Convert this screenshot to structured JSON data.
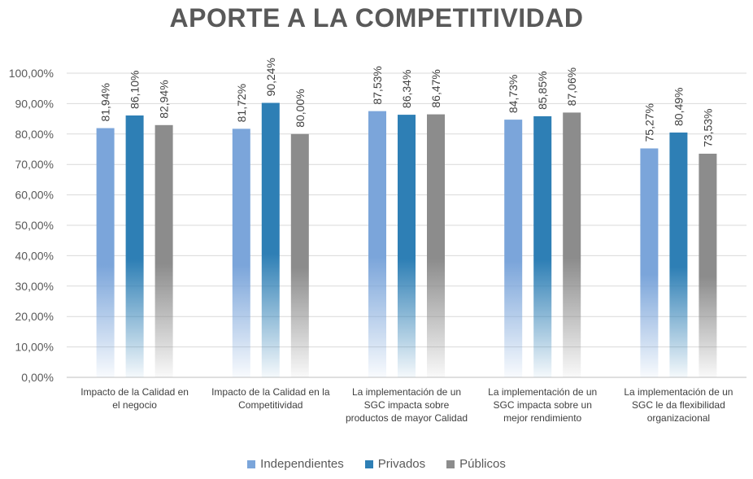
{
  "chart_data": {
    "type": "bar",
    "title": "APORTE A LA COMPETITIVIDAD",
    "xlabel": "",
    "ylabel": "",
    "ylim": [
      0,
      100
    ],
    "yticks": [
      "0,00%",
      "10,00%",
      "20,00%",
      "30,00%",
      "40,00%",
      "50,00%",
      "60,00%",
      "70,00%",
      "80,00%",
      "90,00%",
      "100,00%"
    ],
    "grid": true,
    "legend_position": "bottom",
    "categories": [
      [
        "Impacto de la Calidad en",
        "el negocio"
      ],
      [
        "Impacto de la Calidad en la",
        "Competitividad"
      ],
      [
        "La implementación de un",
        "SGC impacta sobre",
        "productos de mayor Calidad"
      ],
      [
        "La implementación de un",
        "SGC impacta sobre un",
        "mejor rendimiento"
      ],
      [
        "La implementación de un",
        "SGC le da flexibilidad",
        "organizacional"
      ]
    ],
    "series": [
      {
        "name": "Independientes",
        "color": "#7ba5da",
        "values": [
          81.94,
          81.72,
          87.53,
          84.73,
          75.27
        ],
        "labels": [
          "81,94%",
          "81,72%",
          "87,53%",
          "84,73%",
          "75,27%"
        ]
      },
      {
        "name": "Privados",
        "color": "#2e7fb5",
        "values": [
          86.1,
          90.24,
          86.34,
          85.85,
          80.49
        ],
        "labels": [
          "86,10%",
          "90,24%",
          "86,34%",
          "85,85%",
          "80,49%"
        ]
      },
      {
        "name": "Públicos",
        "color": "#8c8c8c",
        "values": [
          82.94,
          80.0,
          86.47,
          87.06,
          73.53
        ],
        "labels": [
          "82,94%",
          "80,00%",
          "86,47%",
          "87,06%",
          "73,53%"
        ]
      }
    ]
  }
}
